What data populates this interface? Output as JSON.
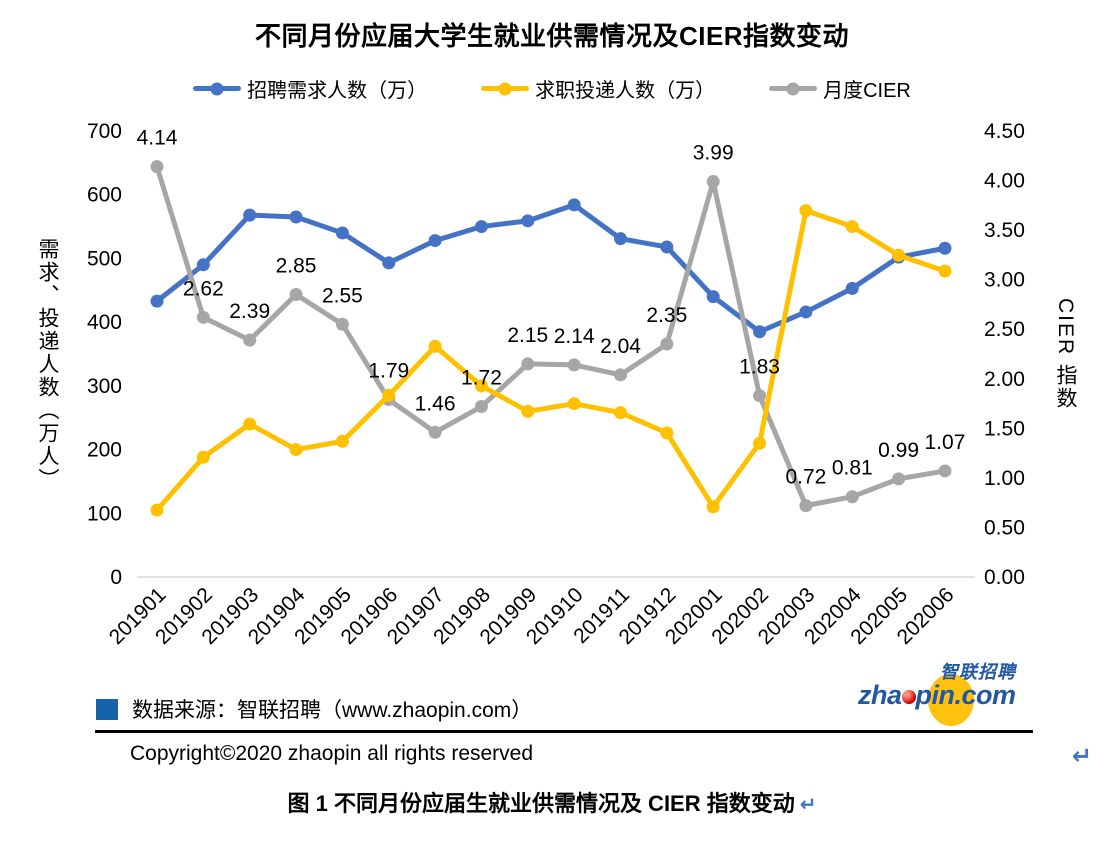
{
  "title": "不同月份应届大学生就业供需情况及CIER指数变动",
  "legend": [
    {
      "label": "招聘需求人数（万）",
      "color": "#4472C4"
    },
    {
      "label": "求职投递人数（万）",
      "color": "#FFC000"
    },
    {
      "label": "月度CIER",
      "color": "#A6A6A6"
    }
  ],
  "chart_data": {
    "type": "line",
    "title": "不同月份应届大学生就业供需情况及CIER指数变动",
    "categories": [
      "201901",
      "201902",
      "201903",
      "201904",
      "201905",
      "201906",
      "201907",
      "201908",
      "201909",
      "201910",
      "201911",
      "201912",
      "202001",
      "202002",
      "202003",
      "202004",
      "202005",
      "202006"
    ],
    "series": [
      {
        "name": "招聘需求人数（万）",
        "axis": "left",
        "color": "#4472C4",
        "values": [
          433,
          490,
          568,
          565,
          540,
          493,
          528,
          550,
          559,
          584,
          531,
          518,
          440,
          385,
          416,
          453,
          502,
          516
        ]
      },
      {
        "name": "求职投递人数（万）",
        "axis": "left",
        "color": "#FFC000",
        "values": [
          105,
          188,
          240,
          200,
          213,
          285,
          362,
          300,
          260,
          272,
          258,
          226,
          110,
          210,
          575,
          550,
          505,
          480
        ]
      },
      {
        "name": "月度CIER",
        "axis": "right",
        "color": "#A6A6A6",
        "data_labels": true,
        "values": [
          4.14,
          2.62,
          2.39,
          2.85,
          2.55,
          1.79,
          1.46,
          1.72,
          2.15,
          2.14,
          2.04,
          2.35,
          3.99,
          1.83,
          0.72,
          0.81,
          0.99,
          1.07
        ]
      }
    ],
    "left_axis": {
      "title": "需求、投递人数（万人）",
      "min": 0,
      "max": 700,
      "step": 100
    },
    "right_axis": {
      "title": "CIER 指数",
      "min": 0,
      "max": 4.5,
      "step": 0.5
    },
    "grid": false,
    "legend_position": "top"
  },
  "footer": {
    "source": "数据来源：智联招聘（www.zhaopin.com）",
    "copyright": "Copyright©2020 zhaopin all rights reserved",
    "logo_cn": "智联招聘",
    "logo_en_left": "zha",
    "logo_en_right": "pin.com"
  },
  "caption": {
    "text": "图 1  不同月份应届生就业供需情况及 CIER 指数变动"
  },
  "marks": {
    "return_mark": "↵"
  },
  "colors": {
    "demand_line": "#4472C4",
    "supply_line": "#FFC000",
    "cier_line": "#A6A6A6",
    "axis_line": "#D9D9D9",
    "source_bullet": "#1663AC",
    "logo_blue": "#2157A4",
    "logo_yellow": "#FFC20E",
    "logo_red": "#C00000",
    "return_mark_blue": "#4472C4"
  }
}
